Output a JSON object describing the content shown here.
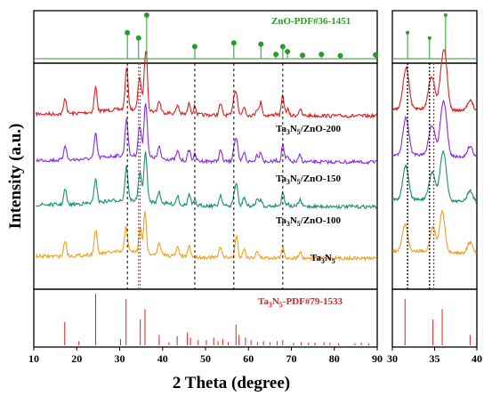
{
  "chart_data": {
    "type": "line",
    "xlabel": "2 Theta (degree)",
    "ylabel": "Intensity (a.u.)",
    "main_panel": {
      "xlim": [
        10,
        90
      ],
      "xticks": [
        10,
        20,
        30,
        40,
        50,
        60,
        70,
        80,
        90
      ],
      "series": [
        {
          "name": "Ta3N5/ZnO-200",
          "label_main": "Ta",
          "label_sub1": "3",
          "label_mid": "N",
          "label_sub2": "5",
          "label_tail": "/ZnO-200",
          "color": "#dd2020",
          "offset": 3
        },
        {
          "name": "Ta3N5/ZnO-150",
          "label_main": "Ta",
          "label_sub1": "3",
          "label_mid": "N",
          "label_sub2": "5",
          "label_tail": "/ZnO-150",
          "color": "#8a2be2",
          "offset": 2
        },
        {
          "name": "Ta3N5/ZnO-100",
          "label_main": "Ta",
          "label_sub1": "3",
          "label_mid": "N",
          "label_sub2": "5",
          "label_tail": "/ZnO-100",
          "color": "#1a9070",
          "offset": 1
        },
        {
          "name": "Ta3N5",
          "label_main": "Ta",
          "label_sub1": "3",
          "label_mid": "N",
          "label_sub2": "5",
          "label_tail": "",
          "color": "#f0a020",
          "offset": 0
        }
      ],
      "ta3n5_peaks": [
        [
          17.3,
          0.35
        ],
        [
          24.4,
          0.55
        ],
        [
          31.5,
          0.6
        ],
        [
          34.8,
          0.55
        ],
        [
          35.9,
          0.9
        ],
        [
          39.2,
          0.25
        ],
        [
          43.5,
          0.2
        ],
        [
          46.2,
          0.25
        ],
        [
          53.5,
          0.25
        ],
        [
          57.2,
          0.5
        ],
        [
          59.0,
          0.2
        ],
        [
          62.0,
          0.15
        ],
        [
          68.0,
          0.2
        ],
        [
          72.0,
          0.15
        ]
      ],
      "zno_peaks": [
        [
          31.8,
          0.45
        ],
        [
          34.4,
          0.35
        ],
        [
          36.3,
          0.8
        ],
        [
          47.5,
          0.2
        ],
        [
          56.6,
          0.35
        ],
        [
          62.9,
          0.3
        ],
        [
          66.4,
          0.05
        ],
        [
          68.0,
          0.25
        ],
        [
          69.1,
          0.15
        ]
      ],
      "dashed_lines_x": [
        31.8,
        47.5,
        56.6,
        68.0
      ],
      "dotted_lines_x": [
        {
          "x": 34.4,
          "color": "#dd2020"
        },
        {
          "x": 34.8,
          "color": "#8a2be2"
        }
      ]
    },
    "zno_reference": {
      "label": "ZnO-PDF#36-1451",
      "color": "#2a9a2a",
      "sticks": [
        [
          31.8,
          57
        ],
        [
          34.4,
          44
        ],
        [
          36.3,
          100
        ],
        [
          47.5,
          23
        ],
        [
          56.6,
          32
        ],
        [
          62.9,
          29
        ],
        [
          66.4,
          4
        ],
        [
          68.0,
          23
        ],
        [
          69.1,
          11
        ],
        [
          72.6,
          2
        ],
        [
          77.0,
          4
        ],
        [
          81.4,
          1
        ],
        [
          89.6,
          3
        ]
      ]
    },
    "ta3n5_reference": {
      "label_main": "Ta",
      "label_sub1": "3",
      "label_mid": "N",
      "label_sub2": "5",
      "label_tail": "-PDF#79-1533",
      "color": "#dd2020",
      "sticks": [
        [
          17.2,
          45
        ],
        [
          20.5,
          8
        ],
        [
          24.4,
          100
        ],
        [
          30.2,
          12
        ],
        [
          31.5,
          90
        ],
        [
          34.8,
          50
        ],
        [
          35.9,
          70
        ],
        [
          39.2,
          20
        ],
        [
          41.5,
          6
        ],
        [
          43.4,
          18
        ],
        [
          45.8,
          25
        ],
        [
          46.5,
          15
        ],
        [
          48.3,
          10
        ],
        [
          50.2,
          10
        ],
        [
          51.9,
          15
        ],
        [
          52.9,
          8
        ],
        [
          54.0,
          12
        ],
        [
          55.3,
          6
        ],
        [
          57.1,
          40
        ],
        [
          57.8,
          20
        ],
        [
          59.3,
          15
        ],
        [
          60.6,
          10
        ],
        [
          62.1,
          6
        ],
        [
          63.5,
          8
        ],
        [
          65.0,
          6
        ],
        [
          66.7,
          8
        ],
        [
          68.0,
          10
        ],
        [
          70.5,
          5
        ],
        [
          72.3,
          6
        ],
        [
          74.0,
          5
        ],
        [
          75.5,
          5
        ],
        [
          77.6,
          6
        ],
        [
          79.0,
          5
        ],
        [
          81.0,
          4
        ],
        [
          84.8,
          4
        ],
        [
          86.3,
          5
        ],
        [
          88.0,
          4
        ]
      ]
    },
    "zoom_panel": {
      "xlim": [
        30,
        40
      ],
      "xticks": [
        30,
        35,
        40
      ],
      "zno_sticks": [
        [
          31.8,
          57
        ],
        [
          34.4,
          44
        ],
        [
          36.3,
          100
        ]
      ],
      "ta_sticks": [
        [
          31.5,
          90
        ],
        [
          34.8,
          50
        ],
        [
          35.9,
          70
        ],
        [
          39.2,
          20
        ]
      ],
      "dotted_lines": [
        {
          "x": 31.8,
          "color": "#000000"
        },
        {
          "x": 34.4,
          "color": "#000000"
        },
        {
          "x": 34.9,
          "color": "#dd2020"
        }
      ]
    }
  }
}
